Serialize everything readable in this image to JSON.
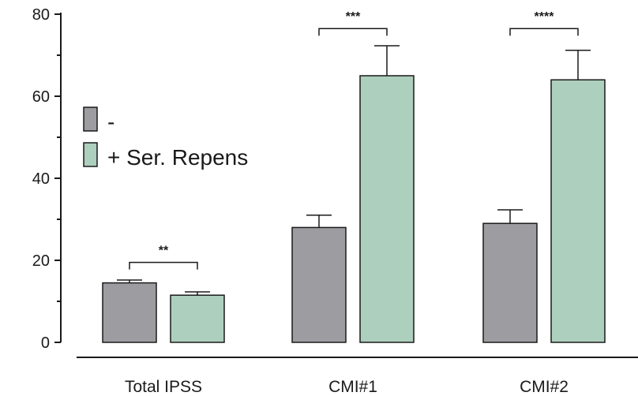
{
  "chart_data": {
    "type": "bar",
    "categories": [
      "Total IPSS",
      "CMI#1",
      "CMI#2"
    ],
    "series": [
      {
        "name": "-",
        "color": "#9d9ca1",
        "values": [
          14.5,
          28,
          29
        ],
        "errors": [
          0.7,
          3,
          3.3
        ]
      },
      {
        "name": "+ Ser. Repens",
        "color": "#adcfbd",
        "values": [
          11.5,
          65,
          64
        ],
        "errors": [
          0.8,
          7.3,
          7.2
        ]
      }
    ],
    "ylim": [
      0,
      80
    ],
    "yticks": [
      0,
      20,
      40,
      60,
      80
    ],
    "ytick_labels": [
      "0",
      "20",
      "40",
      "60",
      "80"
    ],
    "significance": [
      {
        "category": "Total IPSS",
        "label": "**",
        "y": 19.5
      },
      {
        "category": "CMI#1",
        "label": "***",
        "y": 76.5
      },
      {
        "category": "CMI#2",
        "label": "****",
        "y": 76.5
      }
    ],
    "legend": {
      "placement": "left",
      "entries": [
        "-",
        "+ Ser. Repens"
      ]
    },
    "grid": false,
    "title": "",
    "xlabel": "",
    "ylabel": ""
  }
}
